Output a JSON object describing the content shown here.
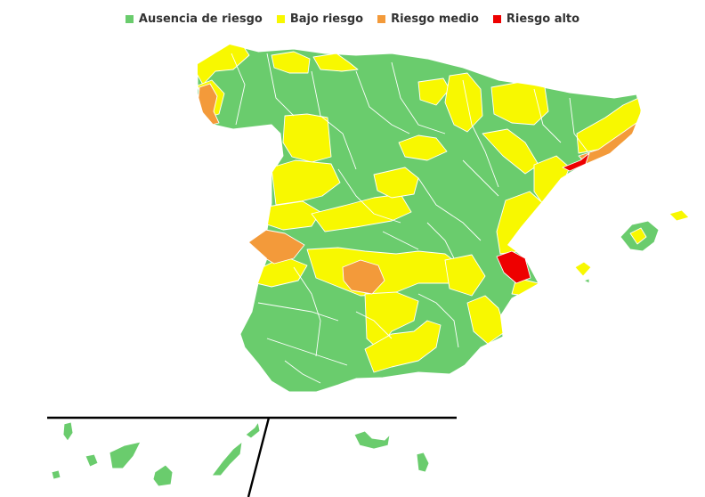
{
  "legend": {
    "items": [
      {
        "label": "Ausencia de riesgo",
        "color": "#6acc6d"
      },
      {
        "label": "Bajo riesgo",
        "color": "#f8f800"
      },
      {
        "label": "Riesgo medio",
        "color": "#f39a3a"
      },
      {
        "label": "Riesgo alto",
        "color": "#ee0000"
      }
    ]
  },
  "map": {
    "colors": {
      "none": "#6acc6d",
      "low": "#f8f800",
      "medium": "#f39a3a",
      "high": "#ee0000"
    }
  }
}
